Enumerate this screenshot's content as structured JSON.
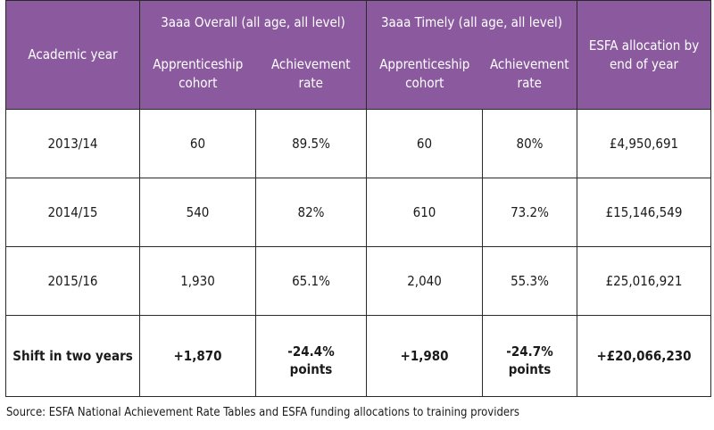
{
  "header": {
    "academic_year": "Academic year",
    "overall_group": "3aaa Overall  (all age, all level)",
    "timely_group": "3aaa Timely (all age, all level)",
    "cohort_line1": "Apprenticeship",
    "cohort_line2": "cohort",
    "rate_line1": "Achievement",
    "rate_line2": "rate",
    "esfa_line1": "ESFA allocation by",
    "esfa_line2": "end of year"
  },
  "rows": [
    {
      "year": "2013/14",
      "overall_cohort": "60",
      "overall_rate": "89.5%",
      "timely_cohort": "60",
      "timely_rate": "80%",
      "esfa": "£4,950,691"
    },
    {
      "year": "2014/15",
      "overall_cohort": "540",
      "overall_rate": "82%",
      "timely_cohort": "610",
      "timely_rate": "73.2%",
      "esfa": "£15,146,549"
    },
    {
      "year": "2015/16",
      "overall_cohort": "1,930",
      "overall_rate": "65.1%",
      "timely_cohort": "2,040",
      "timely_rate": "55.3%",
      "esfa": "£25,016,921"
    }
  ],
  "shift": {
    "label": "Shift in two years",
    "overall_cohort": "+1,870",
    "overall_rate_1": "-24.4%",
    "overall_rate_2": "points",
    "timely_cohort": "+1,980",
    "timely_rate_1": "-24.7%",
    "timely_rate_2": "points",
    "esfa": "+£20,066,230"
  },
  "source": "Source: ESFA National Achievement Rate Tables and ESFA funding allocations to training providers",
  "colors": {
    "header_bg": "#8b5a9e",
    "header_text": "#ffffff",
    "border": "#2a2a2a"
  }
}
